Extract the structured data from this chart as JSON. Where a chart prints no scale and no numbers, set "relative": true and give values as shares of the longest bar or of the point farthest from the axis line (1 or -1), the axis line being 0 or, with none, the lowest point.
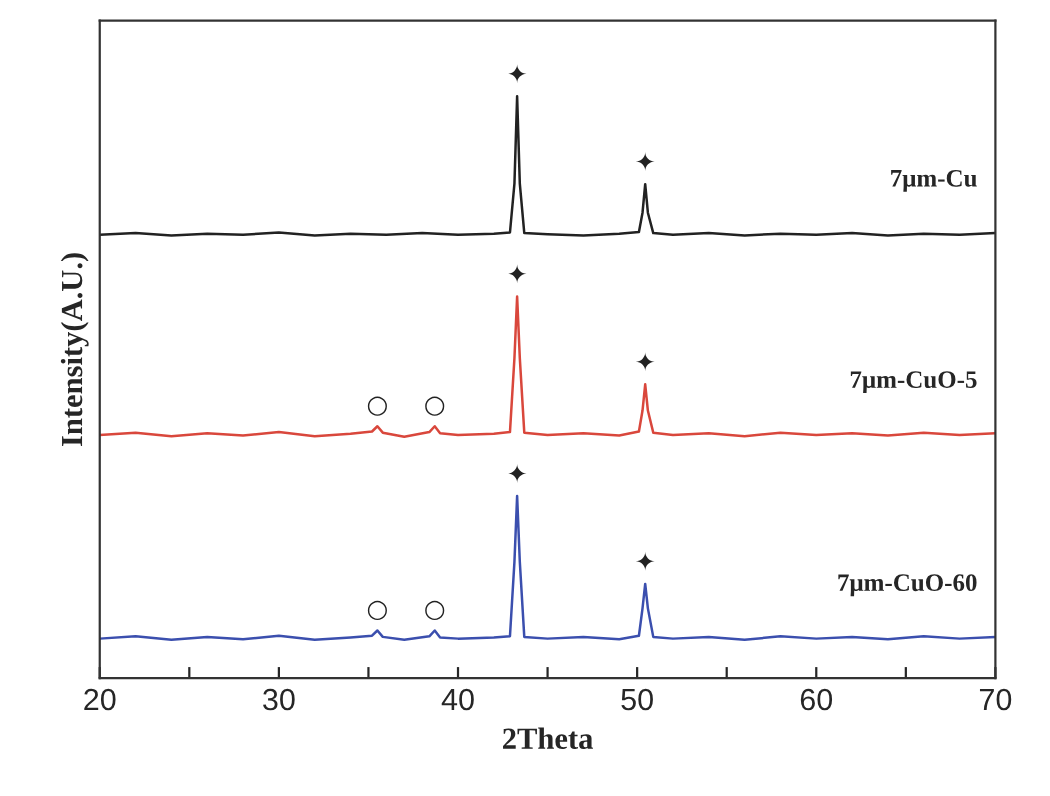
{
  "chart_data": {
    "type": "line",
    "relative": true,
    "xlabel": "2Theta",
    "ylabel": "Intensity(A.U.)",
    "xlim": [
      20,
      70
    ],
    "xticks": [
      20,
      {
        "value": 25,
        "label": null
      },
      30,
      {
        "value": 35,
        "label": null
      },
      40,
      {
        "value": 45,
        "label": null
      },
      50,
      {
        "value": 55,
        "label": null
      },
      60,
      {
        "value": 65,
        "label": null
      },
      70
    ],
    "grid": false,
    "legend": false,
    "marker": "none",
    "line_style": "solid",
    "series": [
      {
        "name": "7μm-Cu",
        "color": "#222222",
        "x": [
          20,
          22,
          24,
          26,
          28,
          30,
          32,
          34,
          36,
          38,
          40,
          42,
          42.9,
          43.15,
          43.3,
          43.45,
          43.7,
          45,
          47,
          49,
          50.1,
          50.3,
          50.45,
          50.6,
          50.9,
          52,
          54,
          56,
          58,
          60,
          62,
          64,
          66,
          68,
          70
        ],
        "values": [
          0.762,
          0.765,
          0.761,
          0.764,
          0.762,
          0.766,
          0.761,
          0.764,
          0.762,
          0.765,
          0.762,
          0.764,
          0.766,
          0.85,
          1.0,
          0.85,
          0.765,
          0.763,
          0.761,
          0.764,
          0.767,
          0.8,
          0.849,
          0.8,
          0.765,
          0.762,
          0.765,
          0.761,
          0.764,
          0.762,
          0.765,
          0.761,
          0.764,
          0.762,
          0.765
        ]
      },
      {
        "name": "7μm-CuO-5",
        "color": "#d9473c",
        "x": [
          20,
          22,
          24,
          26,
          28,
          30,
          32,
          34,
          35.2,
          35.5,
          35.8,
          37,
          38.4,
          38.7,
          39.0,
          40,
          42,
          42.9,
          43.15,
          43.3,
          43.45,
          43.7,
          45,
          47,
          49,
          50.1,
          50.3,
          50.45,
          50.6,
          50.9,
          52,
          54,
          56,
          58,
          60,
          62,
          64,
          66,
          68,
          70
        ],
        "values": [
          0.418,
          0.422,
          0.416,
          0.421,
          0.417,
          0.423,
          0.416,
          0.42,
          0.424,
          0.433,
          0.422,
          0.415,
          0.423,
          0.433,
          0.421,
          0.418,
          0.42,
          0.423,
          0.55,
          0.656,
          0.55,
          0.422,
          0.418,
          0.421,
          0.417,
          0.424,
          0.46,
          0.505,
          0.46,
          0.422,
          0.418,
          0.421,
          0.416,
          0.422,
          0.418,
          0.421,
          0.417,
          0.422,
          0.418,
          0.421
        ]
      },
      {
        "name": "7μm-CuO-60",
        "color": "#3b4fae",
        "x": [
          20,
          22,
          24,
          26,
          28,
          30,
          32,
          34,
          35.2,
          35.5,
          35.8,
          37,
          38.4,
          38.7,
          39.0,
          40,
          42,
          42.9,
          43.15,
          43.3,
          43.45,
          43.7,
          45,
          47,
          49,
          50.1,
          50.3,
          50.45,
          50.6,
          50.9,
          52,
          54,
          56,
          58,
          60,
          62,
          64,
          66,
          68,
          70
        ],
        "values": [
          0.068,
          0.072,
          0.066,
          0.071,
          0.067,
          0.073,
          0.066,
          0.07,
          0.073,
          0.082,
          0.071,
          0.066,
          0.072,
          0.082,
          0.07,
          0.068,
          0.07,
          0.072,
          0.2,
          0.313,
          0.2,
          0.071,
          0.068,
          0.071,
          0.067,
          0.073,
          0.12,
          0.162,
          0.12,
          0.071,
          0.068,
          0.071,
          0.066,
          0.072,
          0.068,
          0.071,
          0.067,
          0.072,
          0.068,
          0.071
        ]
      }
    ],
    "annotations": [
      {
        "text": "✦",
        "x": 43.3,
        "y": 1.0
      },
      {
        "text": "✦",
        "x": 50.45,
        "y": 0.849
      },
      {
        "text": "○",
        "x": 35.5,
        "y": 0.433
      },
      {
        "text": "○",
        "x": 38.7,
        "y": 0.433
      },
      {
        "text": "✦",
        "x": 43.3,
        "y": 0.656
      },
      {
        "text": "✦",
        "x": 50.45,
        "y": 0.505
      },
      {
        "text": "○",
        "x": 35.5,
        "y": 0.082
      },
      {
        "text": "○",
        "x": 38.7,
        "y": 0.082
      },
      {
        "text": "✦",
        "x": 43.3,
        "y": 0.313
      },
      {
        "text": "✦",
        "x": 50.45,
        "y": 0.162
      }
    ]
  }
}
